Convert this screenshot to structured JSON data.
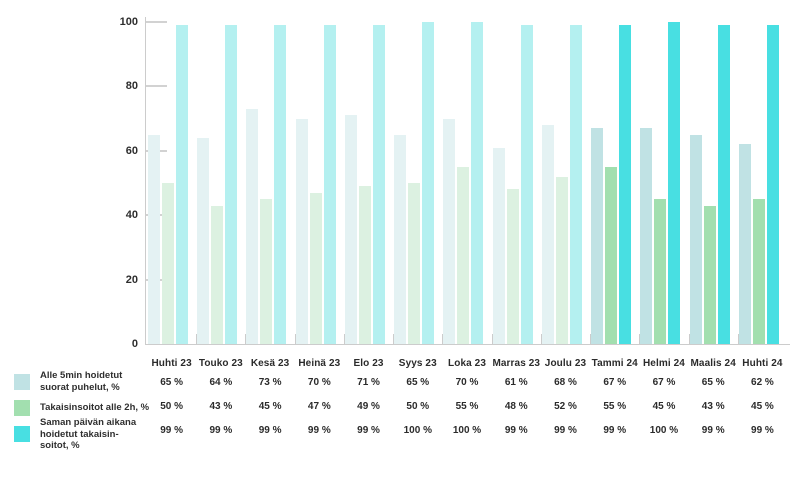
{
  "chart_data": {
    "type": "bar",
    "title": "",
    "xlabel": "",
    "ylabel": "",
    "ylim": [
      0,
      100
    ],
    "yticks": [
      0,
      20,
      40,
      60,
      80,
      100
    ],
    "grid": false,
    "legend_position": "bottom-left",
    "categories": [
      "Huhti 23",
      "Touko 23",
      "Kesä 23",
      "Heinä 23",
      "Elo 23",
      "Syys 23",
      "Loka 23",
      "Marras 23",
      "Joulu 23",
      "Tammi 24",
      "Helmi 24",
      "Maalis 24",
      "Huhti 24"
    ],
    "highlight_from_index": 9,
    "series": [
      {
        "name": "Alle 5min hoidetut suorat puhelut, %",
        "values": [
          65,
          64,
          73,
          70,
          71,
          65,
          70,
          61,
          68,
          67,
          67,
          65,
          62
        ],
        "color_past": "#e4f2f3",
        "color_recent": "#c0e2e4"
      },
      {
        "name": "Takaisinsoitot alle 2h, %",
        "values": [
          50,
          43,
          45,
          47,
          49,
          50,
          55,
          48,
          52,
          55,
          45,
          43,
          45
        ],
        "color_past": "#dcf1e1",
        "color_recent": "#a2dfaf"
      },
      {
        "name": "Saman päivän aikana hoidetut takaisinsoitot, %",
        "values": [
          99,
          99,
          99,
          99,
          99,
          100,
          100,
          99,
          99,
          99,
          100,
          99,
          99
        ],
        "color_past": "#b4f0f0",
        "color_recent": "#48dfe2"
      }
    ]
  },
  "legend": {
    "items": [
      {
        "lines": [
          "Alle 5min hoidetut",
          "suorat puhelut, %"
        ],
        "color": "#c0e2e4"
      },
      {
        "lines": [
          "Takaisinsoitot alle 2h, %"
        ],
        "color": "#a2dfaf"
      },
      {
        "lines": [
          "Saman päivän aikana",
          "hoidetut takaisin-",
          "soitot, %"
        ],
        "color": "#48dfe2"
      }
    ]
  },
  "table": {
    "rows": [
      {
        "cells": [
          "65 %",
          "64 %",
          "73 %",
          "70 %",
          "71 %",
          "65 %",
          "70 %",
          "61 %",
          "68 %",
          "67 %",
          "67 %",
          "65 %",
          "62 %"
        ]
      },
      {
        "cells": [
          "50 %",
          "43 %",
          "45 %",
          "47 %",
          "49 %",
          "50 %",
          "55 %",
          "48 %",
          "52 %",
          "55 %",
          "45 %",
          "43 %",
          "45 %"
        ]
      },
      {
        "cells": [
          "99 %",
          "99 %",
          "99 %",
          "99 %",
          "99 %",
          "100 %",
          "100 %",
          "99 %",
          "99 %",
          "99 %",
          "100 %",
          "99 %",
          "99 %"
        ]
      }
    ]
  }
}
